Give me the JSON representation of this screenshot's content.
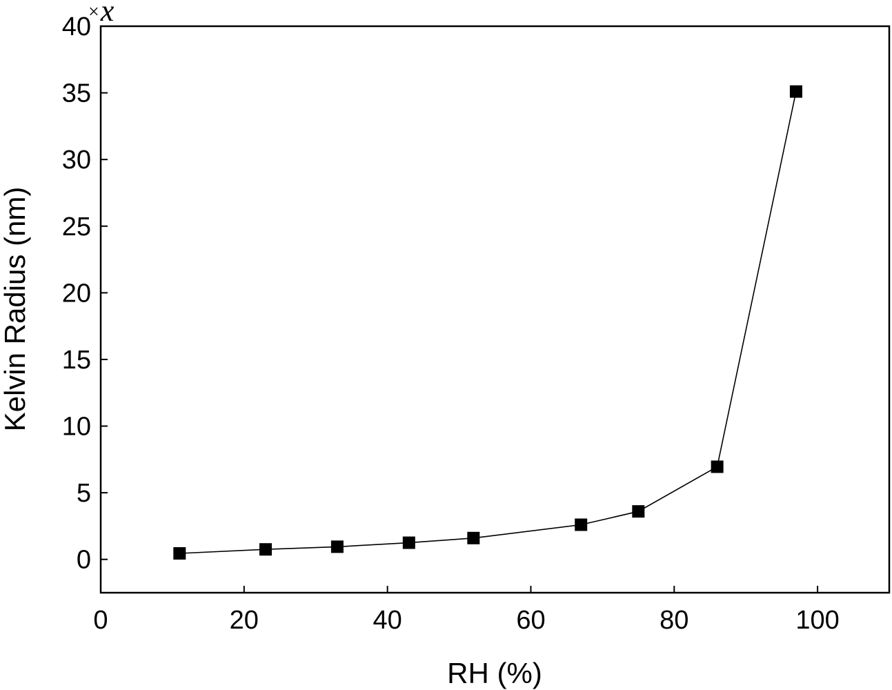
{
  "chart_data": {
    "type": "line",
    "marker": "square",
    "x": [
      11,
      23,
      33,
      43,
      52,
      67,
      75,
      86,
      97
    ],
    "series": [
      {
        "values": [
          0.45,
          0.75,
          0.95,
          1.25,
          1.6,
          2.6,
          3.6,
          6.95,
          35.1
        ]
      }
    ],
    "xlabel": "RH (%)",
    "ylabel": "Kelvin Radius (nm)",
    "xlim": [
      0,
      110
    ],
    "ylim": [
      -2.5,
      40
    ],
    "xticks": [
      0,
      20,
      40,
      60,
      80,
      100
    ],
    "yticks": [
      0,
      5,
      10,
      15,
      20,
      25,
      30,
      35,
      40
    ],
    "xtick_labels": [
      "0",
      "20",
      "40",
      "60",
      "80",
      "100"
    ],
    "ytick_labels": [
      "0",
      "5",
      "10",
      "15",
      "20",
      "25",
      "30",
      "35",
      "40"
    ],
    "multiplier_sign": "×",
    "multiplier_var": "x",
    "grid": false,
    "legend": "none",
    "colors": {
      "line": "#000000",
      "marker": "#000000",
      "frame": "#000000"
    }
  }
}
